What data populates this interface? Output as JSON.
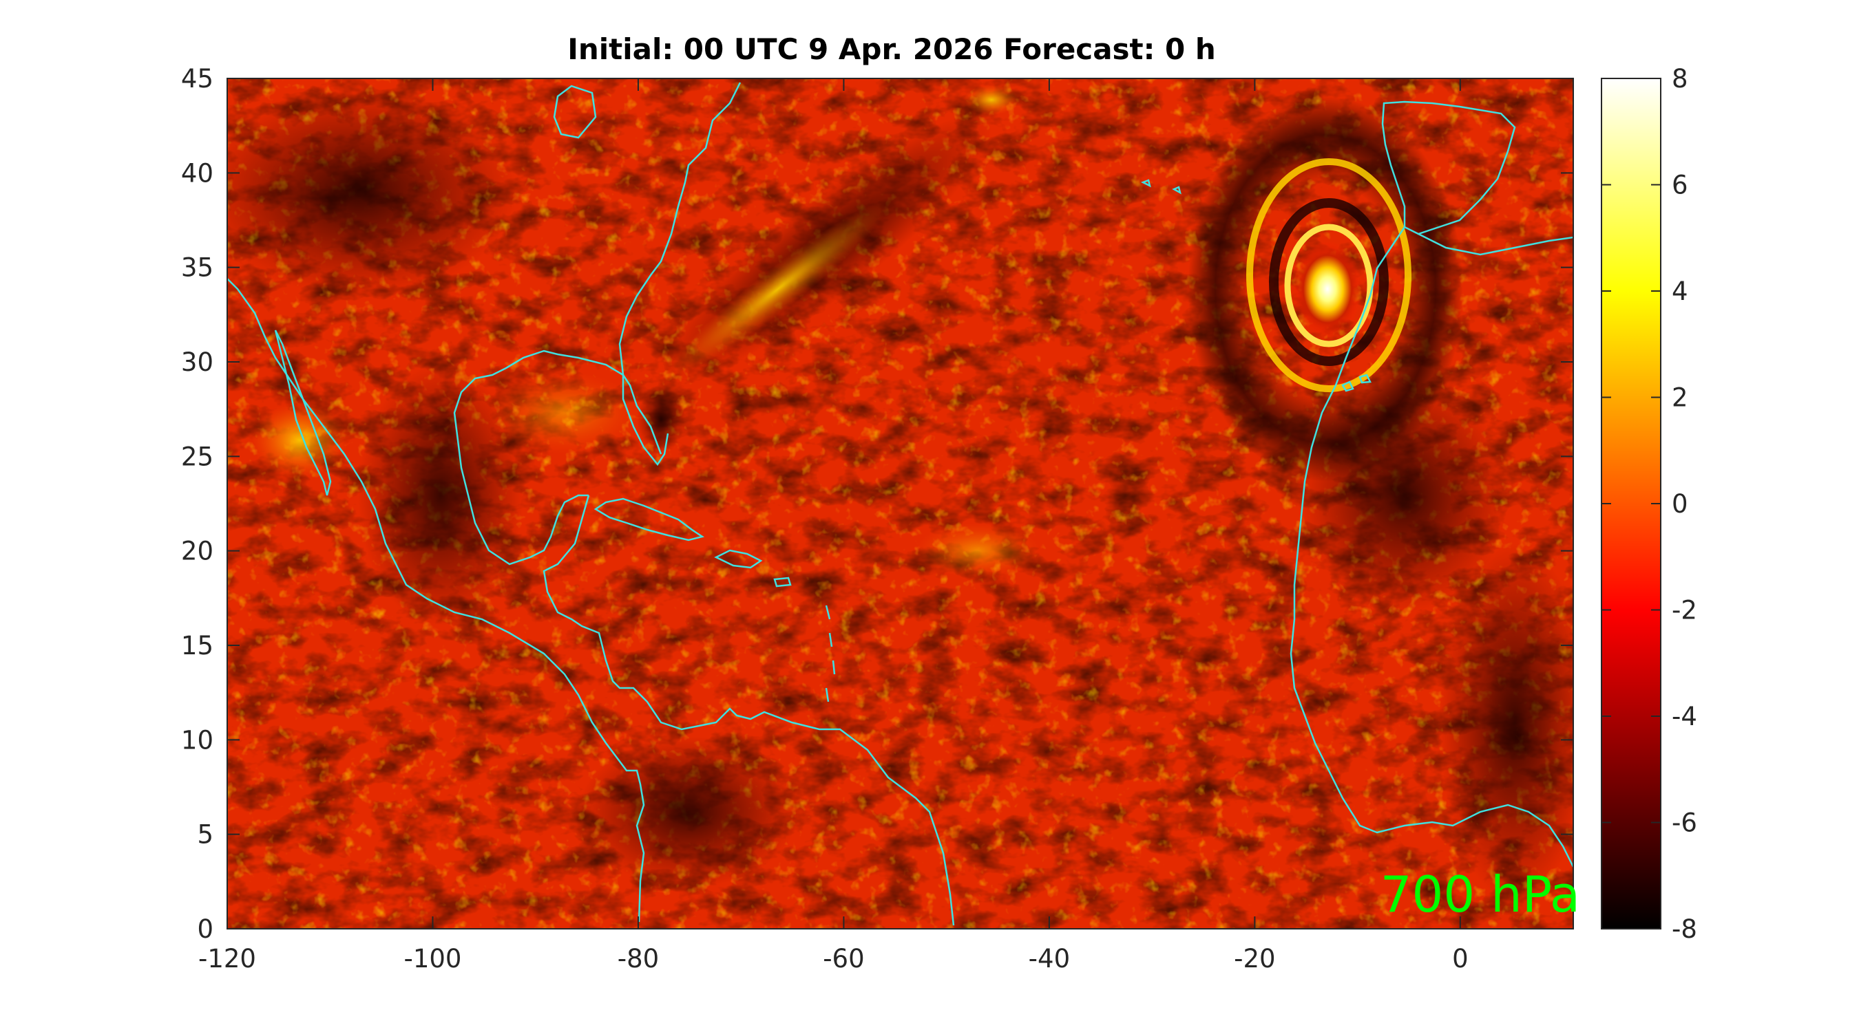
{
  "title": "Initial: 00 UTC 9 Apr. 2026 Forecast: 0 h",
  "level_label": "700 hPa",
  "colors": {
    "coastline": "#40e0e0",
    "level_label": "#00ff00",
    "axis": "#262626",
    "background": "#ffffff"
  },
  "colormap": "hot",
  "map": {
    "lon_range": [
      -120,
      11
    ],
    "lat_range": [
      0,
      45
    ],
    "region": "Tropical and subtropical North Atlantic, Caribbean, Gulf of Mexico, eastern Pacific off Mexico, northwest Africa and Iberia",
    "features": [
      "intense closed-loop maximum (values near +8) west of Morocco near 14W, 33N",
      "streaky positive bands along a frontal zone from 70W,27N to 44W,45N",
      "positive anomaly over Baja California near 113W, 25N",
      "dark negative band along the coast of northwest Africa"
    ]
  },
  "x_axis": {
    "ticks": [
      "-120",
      "-100",
      "-80",
      "-60",
      "-40",
      "-20",
      "0"
    ],
    "tick_values": [
      -120,
      -100,
      -80,
      -60,
      -40,
      -20,
      0
    ]
  },
  "y_axis": {
    "ticks": [
      "0",
      "5",
      "10",
      "15",
      "20",
      "25",
      "30",
      "35",
      "40",
      "45"
    ],
    "tick_values": [
      0,
      5,
      10,
      15,
      20,
      25,
      30,
      35,
      40,
      45
    ]
  },
  "colorbar": {
    "range": [
      -8,
      8
    ],
    "ticks": [
      "8",
      "6",
      "4",
      "2",
      "0",
      "-2",
      "-4",
      "-6",
      "-8"
    ],
    "tick_values": [
      8,
      6,
      4,
      2,
      0,
      -2,
      -4,
      -6,
      -8
    ]
  }
}
